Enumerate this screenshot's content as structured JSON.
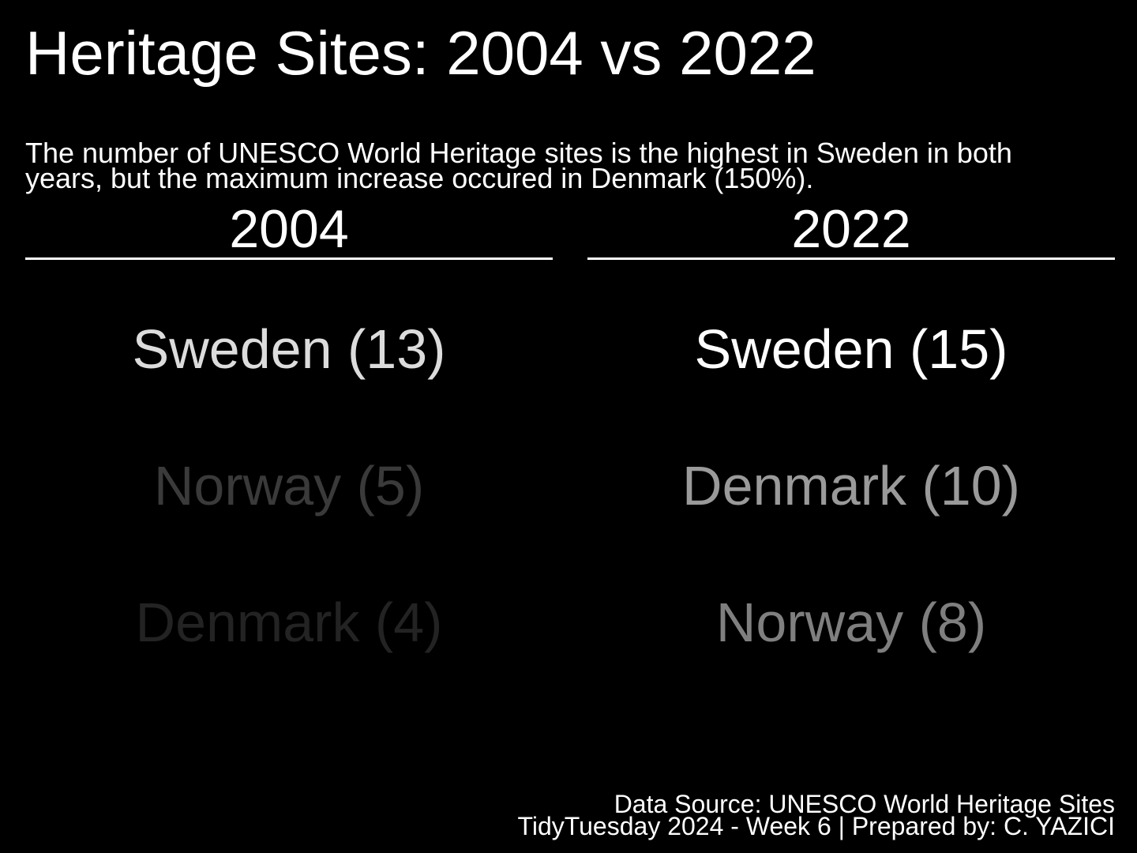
{
  "title": "Heritage Sites: 2004 vs 2022",
  "subtitle": "The number of UNESCO World Heritage sites is the highest in Sweden in both years, but the maximum increase occured in Denmark (150%).",
  "chart_data": {
    "type": "table",
    "columns": [
      {
        "year": "2004",
        "rows": [
          {
            "label": "Sweden (13)",
            "country": "Sweden",
            "value": 13,
            "color": "#dcdcdc"
          },
          {
            "label": "Norway (5)",
            "country": "Norway",
            "value": 5,
            "color": "#3a3a3a"
          },
          {
            "label": "Denmark (4)",
            "country": "Denmark",
            "value": 4,
            "color": "#232323"
          }
        ]
      },
      {
        "year": "2022",
        "rows": [
          {
            "label": "Sweden (15)",
            "country": "Sweden",
            "value": 15,
            "color": "#ffffff"
          },
          {
            "label": "Denmark (10)",
            "country": "Denmark",
            "value": 10,
            "color": "#9a9a9a"
          },
          {
            "label": "Norway (8)",
            "country": "Norway",
            "value": 8,
            "color": "#7f7f7f"
          }
        ]
      }
    ]
  },
  "footer": {
    "source": "Data Source: UNESCO World Heritage Sites",
    "credit": "TidyTuesday 2024 - Week 6 | Prepared by: C. YAZICI"
  }
}
